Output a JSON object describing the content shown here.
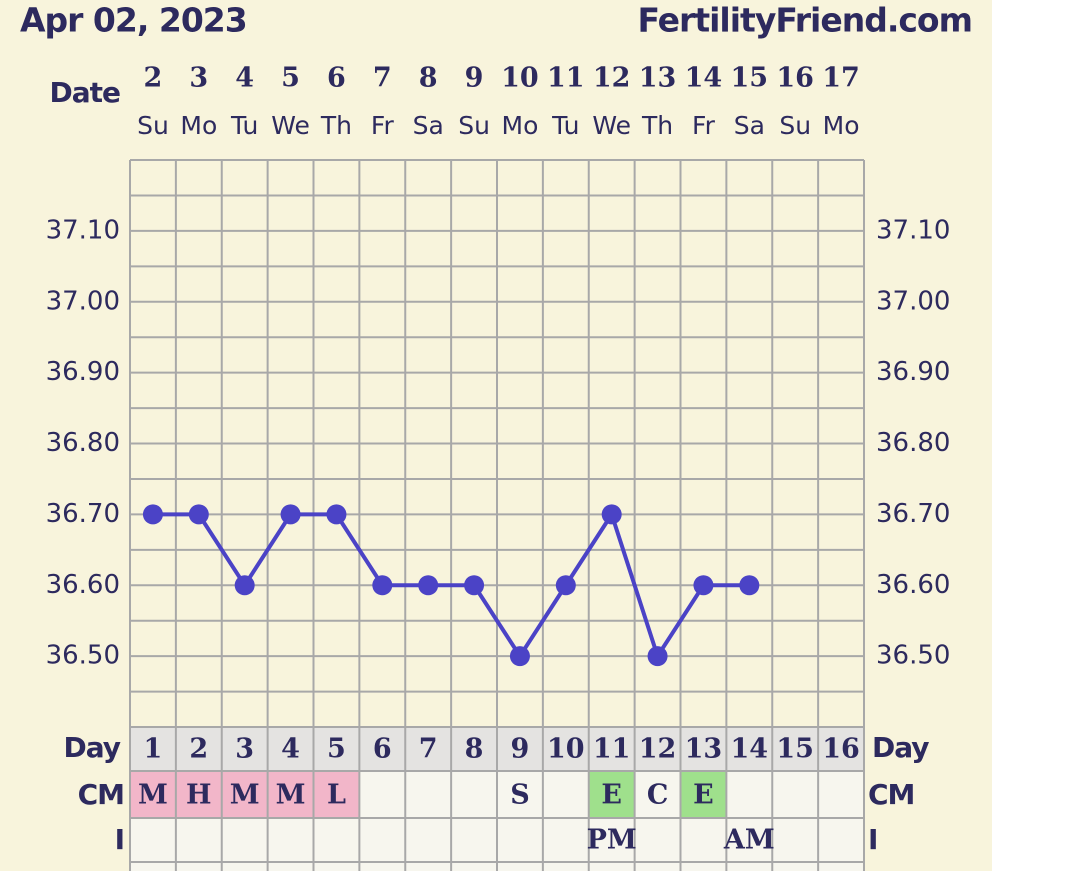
{
  "chart_data": {
    "type": "line",
    "title": "Apr 02, 2023",
    "site": "FertilityFriend.com",
    "date_label": "Date",
    "day_label": "Day",
    "cm_label": "CM",
    "intercourse_label": "I",
    "categories": [
      "2",
      "3",
      "4",
      "5",
      "6",
      "7",
      "8",
      "9",
      "10",
      "11",
      "12",
      "13",
      "14",
      "15",
      "16",
      "17"
    ],
    "weekdays": [
      "Su",
      "Mo",
      "Tu",
      "We",
      "Th",
      "Fr",
      "Sa",
      "Su",
      "Mo",
      "Tu",
      "We",
      "Th",
      "Fr",
      "Sa",
      "Su",
      "Mo"
    ],
    "values": [
      36.7,
      36.7,
      36.6,
      36.7,
      36.7,
      36.6,
      36.6,
      36.6,
      36.5,
      36.6,
      36.7,
      36.5,
      36.6,
      36.6,
      null,
      null
    ],
    "color": "#4b43c6",
    "ylim": [
      36.4,
      37.2
    ],
    "yticks": [
      {
        "value": 36.5,
        "label": "36.50"
      },
      {
        "value": 36.6,
        "label": "36.60"
      },
      {
        "value": 36.7,
        "label": "36.70"
      },
      {
        "value": 36.8,
        "label": "36.80"
      },
      {
        "value": 36.9,
        "label": "36.90"
      },
      {
        "value": 37.0,
        "label": "37.00"
      },
      {
        "value": 37.1,
        "label": "37.10"
      }
    ],
    "minor_yticks": [
      36.4,
      36.45,
      36.55,
      36.65,
      36.75,
      36.85,
      36.95,
      37.05,
      37.15,
      37.2
    ],
    "grid": true,
    "cycle_days": [
      1,
      2,
      3,
      4,
      5,
      6,
      7,
      8,
      9,
      10,
      11,
      12,
      13,
      14,
      15,
      16
    ],
    "cm": [
      "M",
      "H",
      "M",
      "M",
      "L",
      null,
      null,
      null,
      "S",
      null,
      "E",
      "C",
      "E",
      null,
      null,
      null
    ],
    "cm_colors": [
      "#f2b6c9",
      "#f2b6c9",
      "#f2b6c9",
      "#f2b6c9",
      "#f2b6c9",
      null,
      null,
      null,
      null,
      null,
      "#9fe08c",
      null,
      "#9fe08c",
      null,
      null,
      null
    ],
    "intercourse": [
      null,
      null,
      null,
      null,
      null,
      null,
      null,
      null,
      null,
      null,
      "PM",
      null,
      null,
      "AM",
      null,
      null
    ]
  }
}
